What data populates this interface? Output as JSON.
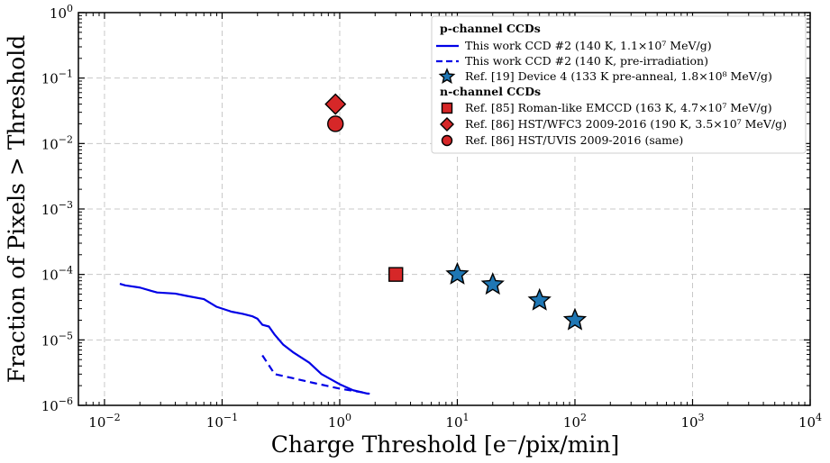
{
  "chart_data": {
    "type": "scatter",
    "xlabel": "Charge Threshold [e⁻/pix/min]",
    "ylabel": "Fraction of Pixels > Threshold",
    "x_scale": "log",
    "y_scale": "log",
    "xlim": [
      0.006,
      10000
    ],
    "ylim": [
      1e-06,
      1
    ],
    "grid": true,
    "legend_position": "top-right",
    "x_ticks": [
      0.01,
      0.1,
      1,
      10,
      100,
      1000,
      10000
    ],
    "x_tick_labels": [
      {
        "base": "10",
        "exp": "−2"
      },
      {
        "base": "10",
        "exp": "−1"
      },
      {
        "base": "10",
        "exp": "0"
      },
      {
        "base": "10",
        "exp": "1"
      },
      {
        "base": "10",
        "exp": "2"
      },
      {
        "base": "10",
        "exp": "3"
      },
      {
        "base": "10",
        "exp": "4"
      }
    ],
    "y_ticks": [
      1e-06,
      1e-05,
      0.0001,
      0.001,
      0.01,
      0.1,
      1
    ],
    "y_tick_labels": [
      {
        "base": "10",
        "exp": "−6"
      },
      {
        "base": "10",
        "exp": "−5"
      },
      {
        "base": "10",
        "exp": "−4"
      },
      {
        "base": "10",
        "exp": "−3"
      },
      {
        "base": "10",
        "exp": "−2"
      },
      {
        "base": "10",
        "exp": "−1"
      },
      {
        "base": "10",
        "exp": "0"
      }
    ],
    "legend_headers": {
      "p_channel": "p-channel CCDs",
      "n_channel": "n-channel CCDs"
    },
    "series": [
      {
        "name": "This work CCD #2 (140 K, 1.1×10⁷ MeV/g)",
        "style": "solid",
        "color": "#0000e6",
        "x": [
          0.0135,
          0.015,
          0.02,
          0.025,
          0.028,
          0.04,
          0.05,
          0.07,
          0.09,
          0.12,
          0.15,
          0.18,
          0.2,
          0.22,
          0.25,
          0.28,
          0.33,
          0.4,
          0.55,
          0.7,
          1.0,
          1.3,
          1.75
        ],
        "y": [
          7.2e-05,
          6.8e-05,
          6.3e-05,
          5.6e-05,
          5.3e-05,
          5.1e-05,
          4.7e-05,
          4.2e-05,
          3.2e-05,
          2.7e-05,
          2.5e-05,
          2.3e-05,
          2.1e-05,
          1.7e-05,
          1.6e-05,
          1.2e-05,
          8.5e-06,
          6.5e-06,
          4.5e-06,
          3e-06,
          2.1e-06,
          1.7e-06,
          1.5e-06
        ]
      },
      {
        "name": "This work CCD #2 (140 K, pre-irradiation)",
        "style": "dashed",
        "color": "#0000e6",
        "x": [
          0.22,
          0.28,
          0.4,
          0.6,
          1.0,
          1.5,
          1.8
        ],
        "y": [
          5.8e-06,
          3e-06,
          2.6e-06,
          2.2e-06,
          1.8e-06,
          1.6e-06,
          1.5e-06
        ]
      },
      {
        "name": "Ref. [19] Device 4 (133 K pre-anneal, 1.8×10⁸ MeV/g)",
        "marker": "star",
        "color": "#1f77b4",
        "x": [
          10,
          20,
          50,
          100
        ],
        "y": [
          0.0001,
          7e-05,
          4e-05,
          2e-05
        ]
      },
      {
        "name": "Ref. [85] Roman-like EMCCD (163 K, 4.7×10⁷ MeV/g)",
        "marker": "square",
        "color": "#d62728",
        "x": [
          3
        ],
        "y": [
          0.0001
        ]
      },
      {
        "name": "Ref. [86] HST/WFC3 2009-2016 (190 K, 3.5×10⁷ MeV/g)",
        "marker": "diamond",
        "color": "#d62728",
        "x": [
          0.92
        ],
        "y": [
          0.04
        ]
      },
      {
        "name": "Ref. [86] HST/UVIS 2009-2016 (same)",
        "marker": "circle",
        "color": "#d62728",
        "x": [
          0.92
        ],
        "y": [
          0.02
        ]
      }
    ]
  }
}
